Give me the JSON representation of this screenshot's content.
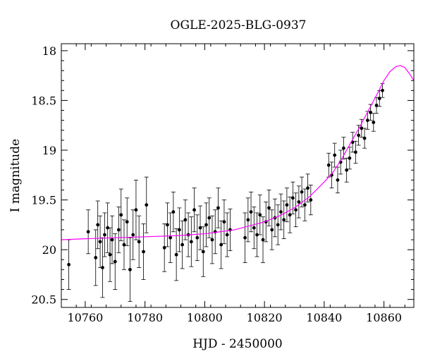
{
  "chart_data": {
    "type": "scatter",
    "title": "OGLE-2025-BLG-0937",
    "xlabel": "HJD - 2450000",
    "ylabel": "I magnitude",
    "xlim": [
      10752,
      10870
    ],
    "ylim": [
      20.58,
      17.93
    ],
    "y_inverted": true,
    "grid": false,
    "x_ticks": [
      10760,
      10780,
      10800,
      10820,
      10840,
      10860
    ],
    "x_tick_labels": [
      "10760",
      "10780",
      "10800",
      "10820",
      "10840",
      "10860"
    ],
    "y_ticks": [
      18,
      18.5,
      19,
      19.5,
      20,
      20.5
    ],
    "y_tick_labels": [
      "18",
      "18.5",
      "19",
      "19.5",
      "20",
      "20.5"
    ],
    "colors": {
      "points": "#000000",
      "model": "#ff00ff",
      "axes": "#000000"
    },
    "series": [
      {
        "name": "",
        "kind": "points_with_errorbars",
        "x": [
          10754.5,
          10761,
          10763.5,
          10764.2,
          10765,
          10765.8,
          10766.5,
          10767.5,
          10768.3,
          10769,
          10770,
          10771.2,
          10772,
          10773,
          10774,
          10775,
          10776,
          10777,
          10778,
          10779.5,
          10780.5,
          10786.5,
          10787.5,
          10788.5,
          10789.5,
          10790.5,
          10791.5,
          10792.5,
          10793.5,
          10794.5,
          10795.5,
          10796.5,
          10797.5,
          10798.5,
          10799.5,
          10800.5,
          10801.5,
          10802.5,
          10803.5,
          10804.5,
          10805.5,
          10806.5,
          10807.5,
          10808.5,
          10813.5,
          10814.5,
          10815.5,
          10816.5,
          10817.5,
          10818.5,
          10819.5,
          10820.5,
          10821.5,
          10822.5,
          10823.5,
          10824.5,
          10825.5,
          10826.5,
          10827.5,
          10828.5,
          10829.5,
          10830.5,
          10831.5,
          10832.5,
          10833.5,
          10834.5,
          10835.5,
          10841.5,
          10842.5,
          10843.5,
          10844.5,
          10845.5,
          10846.5,
          10847.5,
          10848.5,
          10849.5,
          10850.5,
          10851.5,
          10852.5,
          10853.5,
          10854.5,
          10855.5,
          10856.5,
          10857.5,
          10858.5,
          10859.5
        ],
        "y": [
          20.15,
          19.82,
          20.08,
          19.75,
          19.92,
          20.18,
          19.85,
          19.78,
          20.05,
          19.9,
          20.12,
          19.8,
          19.65,
          19.95,
          19.72,
          20.2,
          19.85,
          19.6,
          19.92,
          20.02,
          19.55,
          19.98,
          19.75,
          19.88,
          19.62,
          20.05,
          19.8,
          19.95,
          19.7,
          19.85,
          19.92,
          19.6,
          19.88,
          19.78,
          20.02,
          19.75,
          19.68,
          19.9,
          19.82,
          19.58,
          19.95,
          19.72,
          19.85,
          19.8,
          19.88,
          19.7,
          19.62,
          19.78,
          19.85,
          19.65,
          19.9,
          19.72,
          19.58,
          19.8,
          19.68,
          19.75,
          19.62,
          19.7,
          19.55,
          19.65,
          19.48,
          19.6,
          19.52,
          19.42,
          19.55,
          19.38,
          19.5,
          19.15,
          19.25,
          19.05,
          19.3,
          19.12,
          18.98,
          19.2,
          19.08,
          18.92,
          19.02,
          18.85,
          18.78,
          18.88,
          18.7,
          18.62,
          18.72,
          18.55,
          18.48,
          18.4
        ],
        "err": [
          0.25,
          0.22,
          0.28,
          0.24,
          0.26,
          0.3,
          0.22,
          0.25,
          0.27,
          0.24,
          0.28,
          0.23,
          0.26,
          0.25,
          0.24,
          0.32,
          0.25,
          0.3,
          0.26,
          0.28,
          0.28,
          0.24,
          0.22,
          0.25,
          0.2,
          0.26,
          0.22,
          0.24,
          0.2,
          0.22,
          0.25,
          0.22,
          0.23,
          0.22,
          0.25,
          0.22,
          0.2,
          0.24,
          0.22,
          0.2,
          0.24,
          0.22,
          0.22,
          0.21,
          0.25,
          0.22,
          0.2,
          0.21,
          0.22,
          0.2,
          0.23,
          0.2,
          0.18,
          0.2,
          0.19,
          0.2,
          0.18,
          0.19,
          0.17,
          0.18,
          0.16,
          0.17,
          0.16,
          0.15,
          0.16,
          0.14,
          0.15,
          0.12,
          0.13,
          0.12,
          0.13,
          0.12,
          0.11,
          0.12,
          0.11,
          0.1,
          0.11,
          0.1,
          0.09,
          0.1,
          0.09,
          0.08,
          0.09,
          0.08,
          0.08,
          0.07
        ]
      },
      {
        "name": "",
        "kind": "model_curve",
        "x": [
          10752,
          10760,
          10770,
          10780,
          10790,
          10800,
          10805,
          10810,
          10815,
          10820,
          10825,
          10830,
          10835,
          10840,
          10843,
          10846,
          10849,
          10852,
          10855,
          10858,
          10860,
          10862,
          10864,
          10865.5,
          10867,
          10868.5,
          10870
        ],
        "y": [
          19.9,
          19.89,
          19.88,
          19.87,
          19.86,
          19.84,
          19.82,
          19.8,
          19.76,
          19.72,
          19.66,
          19.58,
          19.47,
          19.32,
          19.22,
          19.08,
          18.92,
          18.76,
          18.59,
          18.42,
          18.3,
          18.21,
          18.16,
          18.15,
          18.17,
          18.23,
          18.3
        ]
      }
    ]
  }
}
